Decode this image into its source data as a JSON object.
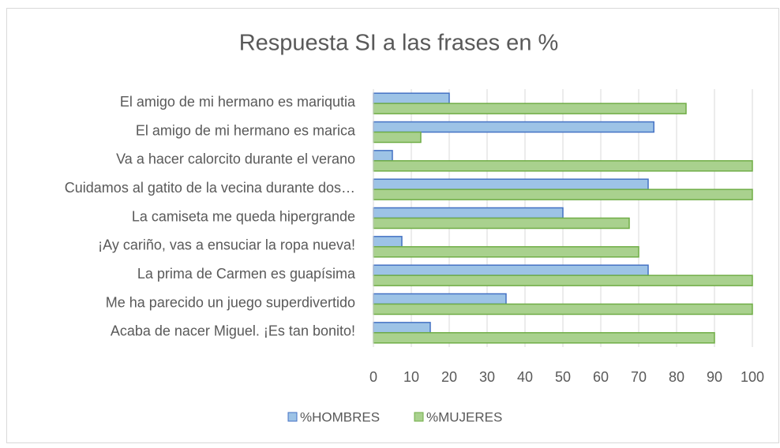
{
  "chart_data": {
    "type": "bar",
    "orientation": "horizontal",
    "title": "Respuesta SI a las frases en %",
    "categories": [
      "El amigo de mi hermano es mariqutia",
      "El amigo de mi hermano es marica",
      "Va a hacer calorcito durante el verano",
      "Cuidamos al gatito de la vecina durante dos…",
      "La camiseta me queda hipergrande",
      "¡Ay cariño, vas a ensuciar la ropa nueva!",
      "La prima de Carmen es guapísima",
      "Me ha parecido un juego superdivertido",
      "Acaba de nacer Miguel. ¡Es tan bonito!"
    ],
    "series": [
      {
        "name": "%HOMBRES",
        "color": "#9dc3e6",
        "border": "#4472c4",
        "values": [
          20,
          74,
          5,
          72.5,
          50,
          7.5,
          72.5,
          35,
          15
        ]
      },
      {
        "name": "%MUJERES",
        "color": "#a9d18e",
        "border": "#70ad47",
        "values": [
          82.5,
          12.5,
          100,
          100,
          67.5,
          70,
          100,
          100,
          90
        ]
      }
    ],
    "xlim": [
      0,
      100
    ],
    "xticks": [
      0,
      10,
      20,
      30,
      40,
      50,
      60,
      70,
      80,
      90,
      100
    ],
    "grid": true,
    "legend": "bottom"
  }
}
